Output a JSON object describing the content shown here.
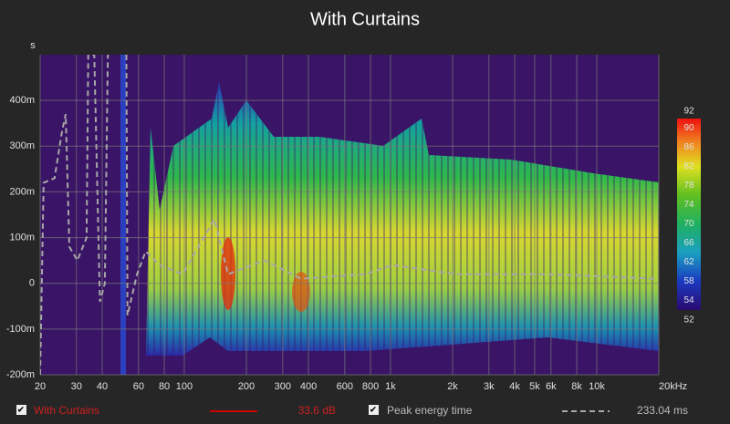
{
  "chart_data": {
    "type": "spectrogram",
    "title": "With Curtains",
    "ylabel": "s",
    "xscale": "log",
    "xlim": [
      20,
      20000
    ],
    "ylim": [
      -0.2,
      0.5
    ],
    "xticks": [
      20,
      30,
      40,
      60,
      80,
      100,
      200,
      300,
      400,
      600,
      800,
      {
        "value": 1000,
        "label": "1k"
      },
      {
        "value": 2000,
        "label": "2k"
      },
      {
        "value": 3000,
        "label": "3k"
      },
      {
        "value": 4000,
        "label": "4k"
      },
      {
        "value": 5000,
        "label": "5k"
      },
      {
        "value": 6000,
        "label": "6k"
      },
      {
        "value": 8000,
        "label": "8k"
      },
      {
        "value": 10000,
        "label": "10k"
      },
      {
        "value": 20000,
        "label": "20kHz"
      }
    ],
    "yticks": [
      {
        "value": -0.2,
        "label": "-200m"
      },
      {
        "value": -0.1,
        "label": "-100m"
      },
      0,
      {
        "value": 0.1,
        "label": "100m"
      },
      {
        "value": 0.2,
        "label": "200m"
      },
      {
        "value": 0.3,
        "label": "300m"
      },
      {
        "value": 0.4,
        "label": "400m"
      }
    ],
    "grid": true,
    "zlim": [
      52,
      92
    ],
    "zticks": [
      52,
      54,
      58,
      62,
      66,
      70,
      74,
      78,
      82,
      86,
      90,
      92
    ],
    "series": [
      {
        "name": "With Curtains",
        "color": "#cc0000",
        "legend_value": "33.6 dB"
      },
      {
        "name": "Peak energy time",
        "color": "#a8a8a8",
        "legend_value": "233.04 ms",
        "x": [
          20,
          20.8,
          23.5,
          25.5,
          26.6,
          27.7,
          30.3,
          33.6,
          34.2,
          36.6,
          39,
          41.2,
          42.6,
          null,
          52.4,
          53,
          59,
          65,
          76,
          98,
          140,
          163,
          245,
          368,
          752,
          1021,
          2085,
          5770,
          19580
        ],
        "values": [
          -0.2,
          0.22,
          0.23,
          0.33,
          0.37,
          0.08,
          0.05,
          0.1,
          0.5,
          0.5,
          -0.04,
          0.0,
          0.5,
          null,
          0.5,
          -0.07,
          0.02,
          0.07,
          0.04,
          0.02,
          0.14,
          0.02,
          0.05,
          0.01,
          0.02,
          0.04,
          0.02,
          0.02,
          0.01
        ]
      }
    ]
  }
}
